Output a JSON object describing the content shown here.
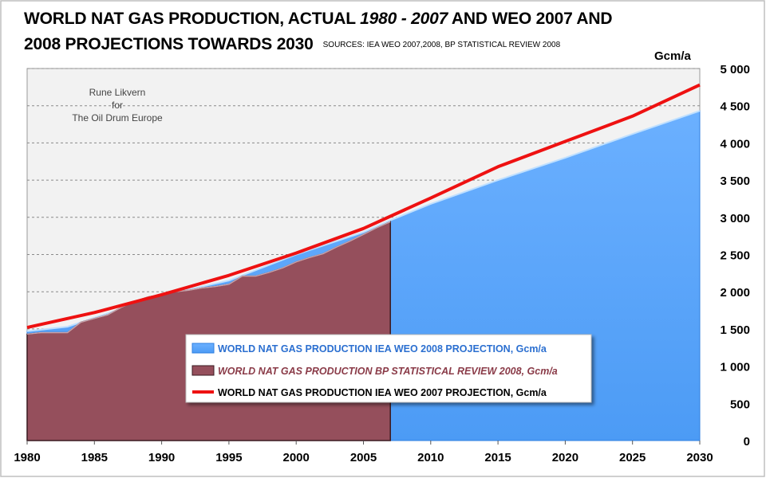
{
  "title": {
    "line1_part1": "WORLD  NAT GAS PRODUCTION, ACTUAL ",
    "line1_years": "1980 - 2007",
    "line1_part2": " AND WEO 2007 AND",
    "line2": "2008 PROJECTIONS TOWARDS 2030",
    "sources": "SOURCES: IEA WEO 2007,2008, BP STATISTICAL REVIEW 2008"
  },
  "credit": {
    "line1": "Rune Likvern",
    "line2": "for",
    "line3": "The Oil Drum Europe"
  },
  "colors": {
    "iea2008": "#4c9bf5",
    "bp": "#954f5c",
    "iea2007": "#ee1111",
    "plot_bg": "#f2f2f2"
  },
  "chart_data": {
    "type": "area",
    "ylabel": "Gcm/a",
    "xlim": [
      1980,
      2030
    ],
    "ylim": [
      0,
      5000
    ],
    "x_ticks": [
      1980,
      1985,
      1990,
      1995,
      2000,
      2005,
      2010,
      2015,
      2020,
      2025,
      2030
    ],
    "y_ticks": [
      0,
      500,
      1000,
      1500,
      2000,
      2500,
      3000,
      3500,
      4000,
      4500,
      5000
    ],
    "y_tick_labels": [
      "0",
      "500",
      "1 000",
      "1 500",
      "2 000",
      "2 500",
      "3 000",
      "3 500",
      "4 000",
      "4 500",
      "5 000"
    ],
    "gridlines": true,
    "legend_position": "bottom-center",
    "series": [
      {
        "name": "WORLD NAT GAS PRODUCTION IEA WEO 2008 PROJECTION,  Gcm/a",
        "kind": "area",
        "x": [
          1980,
          1983,
          1985,
          1990,
          1995,
          2000,
          2005,
          2007,
          2010,
          2015,
          2020,
          2025,
          2030
        ],
        "y": [
          1470,
          1530,
          1650,
          1950,
          2150,
          2500,
          2800,
          2960,
          3180,
          3500,
          3800,
          4120,
          4430
        ]
      },
      {
        "name": "WORLD NAT GAS PRODUCTION BP STATISTICAL REVIEW 2008,  Gcm/a",
        "kind": "area",
        "x": [
          1980,
          1981,
          1982,
          1983,
          1984,
          1985,
          1986,
          1987,
          1988,
          1989,
          1990,
          1991,
          1992,
          1993,
          1994,
          1995,
          1996,
          1997,
          1998,
          1999,
          2000,
          2001,
          2002,
          2003,
          2004,
          2005,
          2006,
          2007
        ],
        "y": [
          1430,
          1450,
          1450,
          1450,
          1590,
          1640,
          1690,
          1790,
          1870,
          1930,
          1960,
          2000,
          2020,
          2050,
          2070,
          2100,
          2210,
          2210,
          2260,
          2320,
          2400,
          2460,
          2510,
          2600,
          2680,
          2770,
          2860,
          2940
        ]
      },
      {
        "name": "WORLD NAT GAS PRODUCTION IEA WEO 2007 PROJECTION,  Gcm/a",
        "kind": "line",
        "x": [
          1980,
          1985,
          1990,
          1995,
          2000,
          2005,
          2010,
          2015,
          2020,
          2025,
          2030
        ],
        "y": [
          1520,
          1720,
          1960,
          2220,
          2520,
          2850,
          3260,
          3680,
          4020,
          4360,
          4780
        ]
      }
    ]
  }
}
